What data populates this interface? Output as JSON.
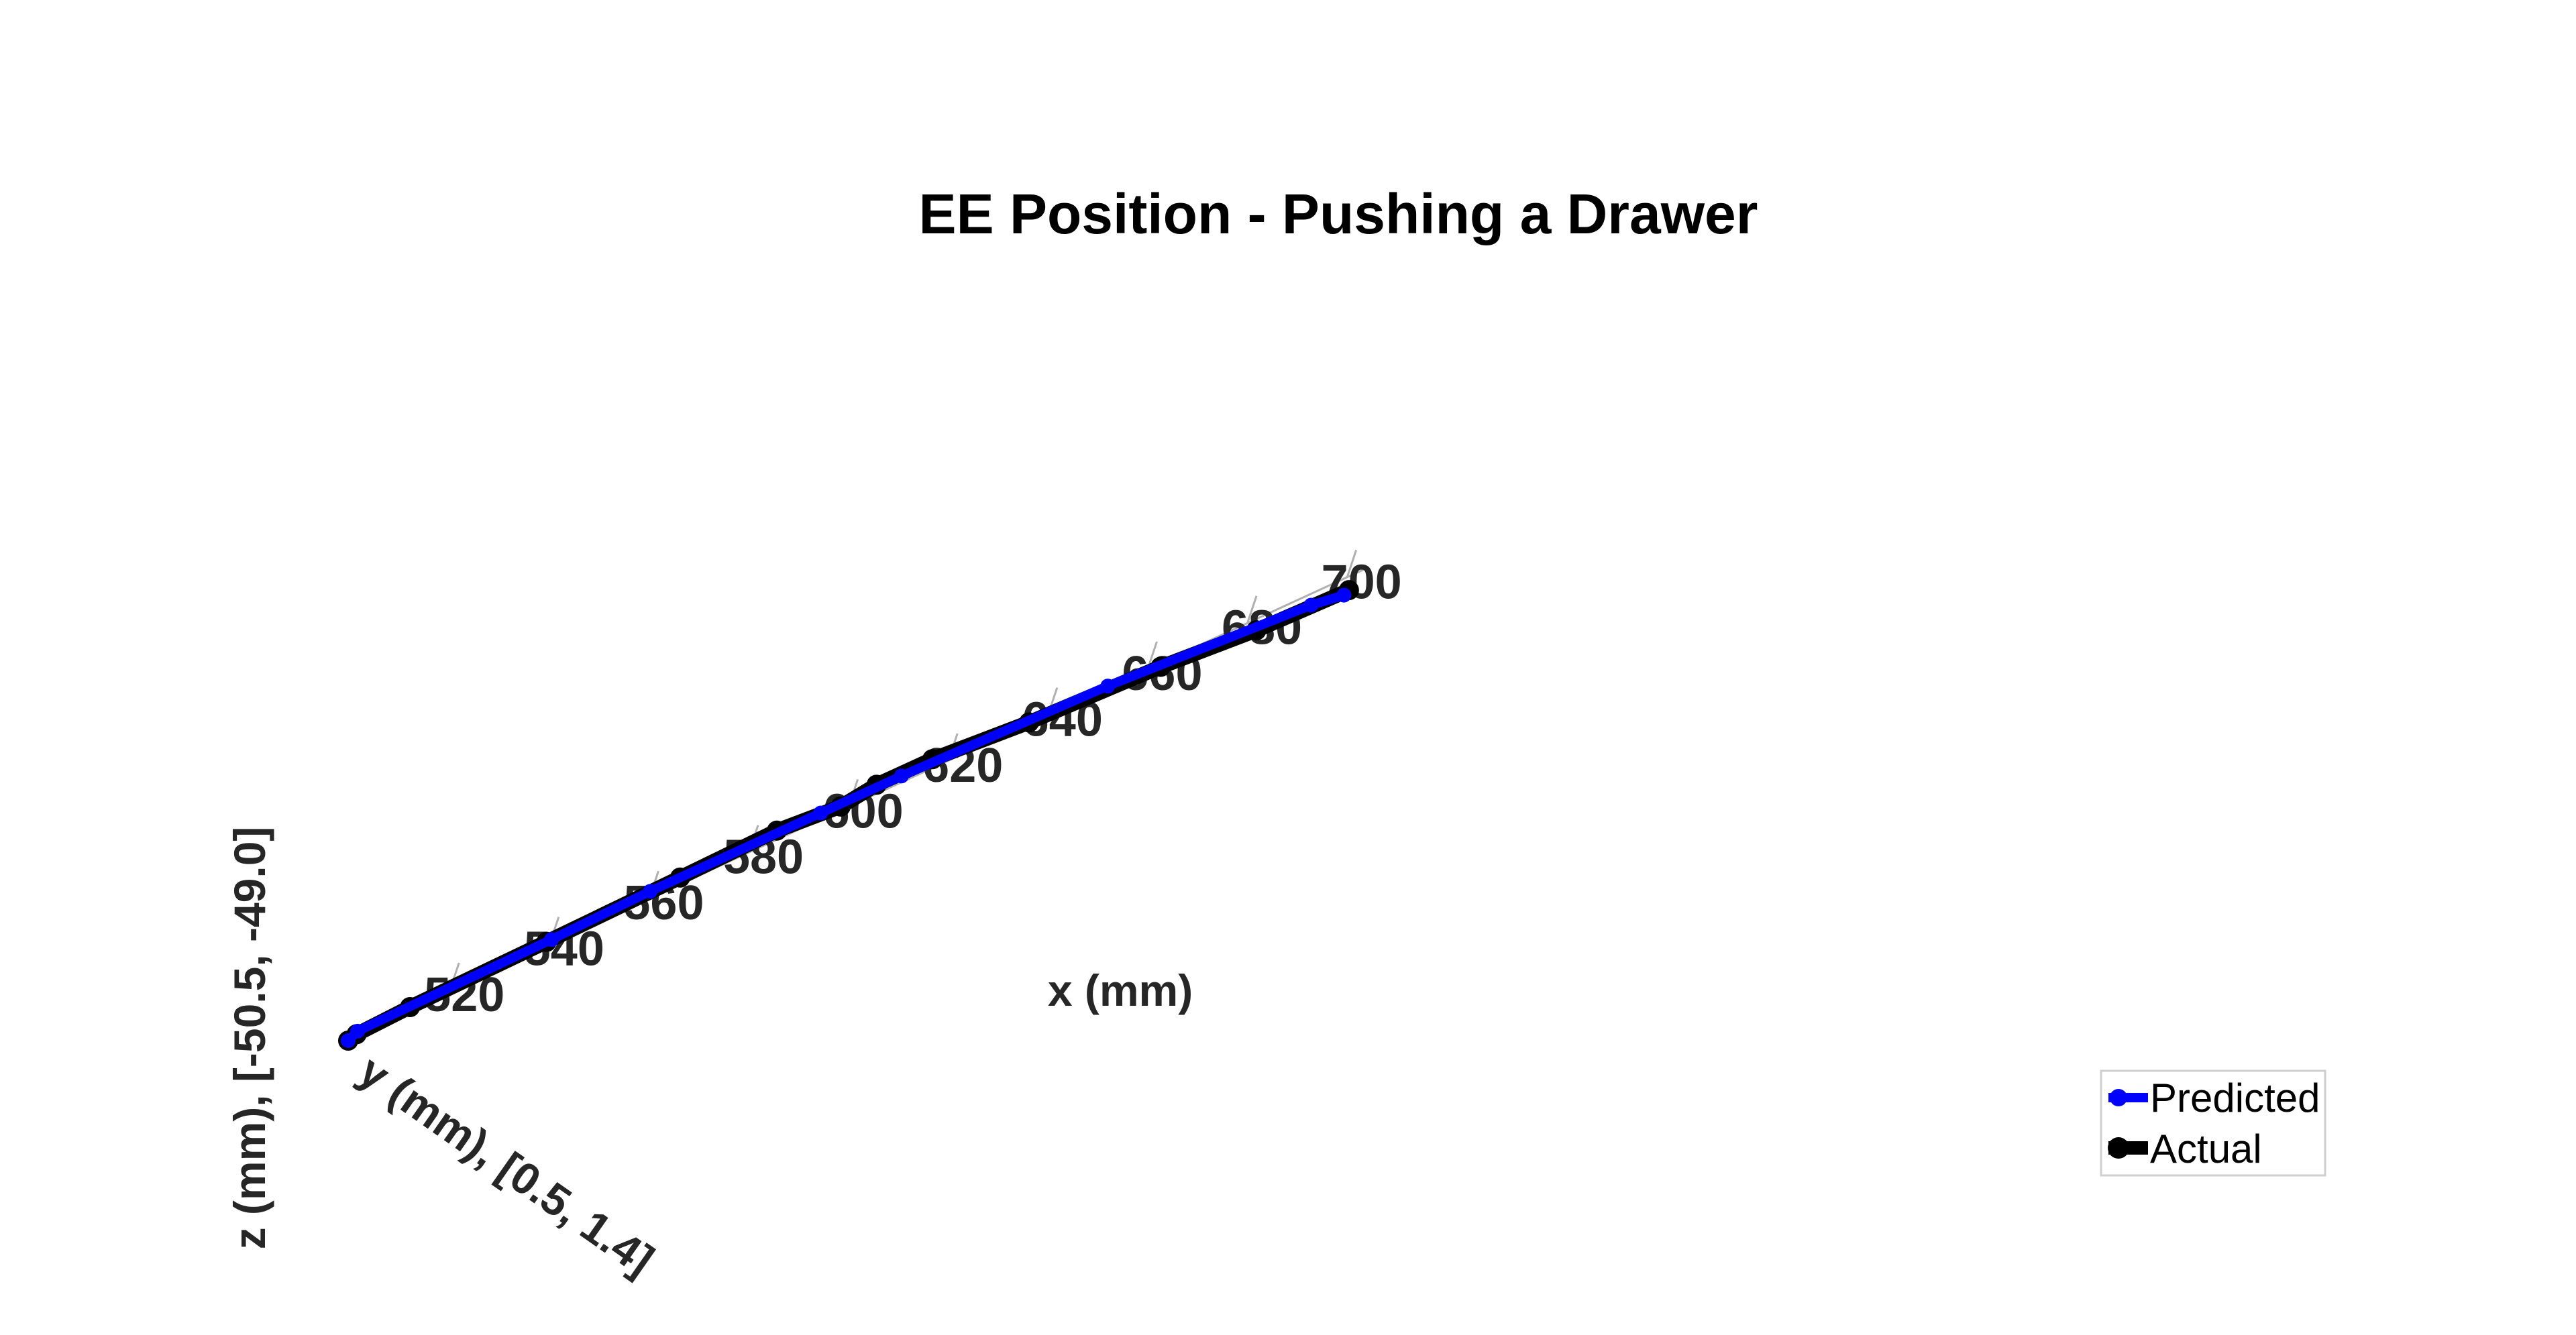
{
  "chart_data": {
    "type": "line",
    "title": "EE Position - Pushing a Drawer",
    "xlabel": "x (mm)",
    "ylabel": "y (mm),  [0.5, 1.4]",
    "zlabel": "z (mm),  [-50.5, -49.0]",
    "xlim": [
      502,
      704
    ],
    "x_ticks": [
      "520",
      "540",
      "560",
      "580",
      "600",
      "620",
      "640",
      "660",
      "680",
      "700"
    ],
    "legend_position": "bottom-right",
    "grid": false,
    "series": [
      {
        "name": "Predicted",
        "color": "#0000ff",
        "x": [
          502,
          503.5,
          542,
          562,
          596,
          612,
          654,
          696,
          703
        ],
        "y": [
          1.1,
          1.0,
          0.9,
          0.95,
          0.9,
          0.85,
          1.0,
          1.3,
          1.4
        ],
        "z": [
          -49.5,
          -49.5,
          -49.6,
          -49.4,
          -49.5,
          -49.6,
          -49.5,
          -49.4,
          -49.4
        ]
      },
      {
        "name": "Actual",
        "color": "#000000",
        "x": [
          502,
          503.5,
          514,
          541,
          568,
          587,
          600,
          607,
          618,
          638,
          665,
          685,
          704
        ],
        "y": [
          1.1,
          1.05,
          1.0,
          0.9,
          0.95,
          0.85,
          0.9,
          0.85,
          0.8,
          0.95,
          1.1,
          1.3,
          1.4
        ],
        "z": [
          -49.5,
          -49.5,
          -49.5,
          -49.6,
          -49.4,
          -49.5,
          -49.6,
          -49.5,
          -49.6,
          -49.6,
          -49.5,
          -49.4,
          -49.3
        ]
      }
    ]
  }
}
